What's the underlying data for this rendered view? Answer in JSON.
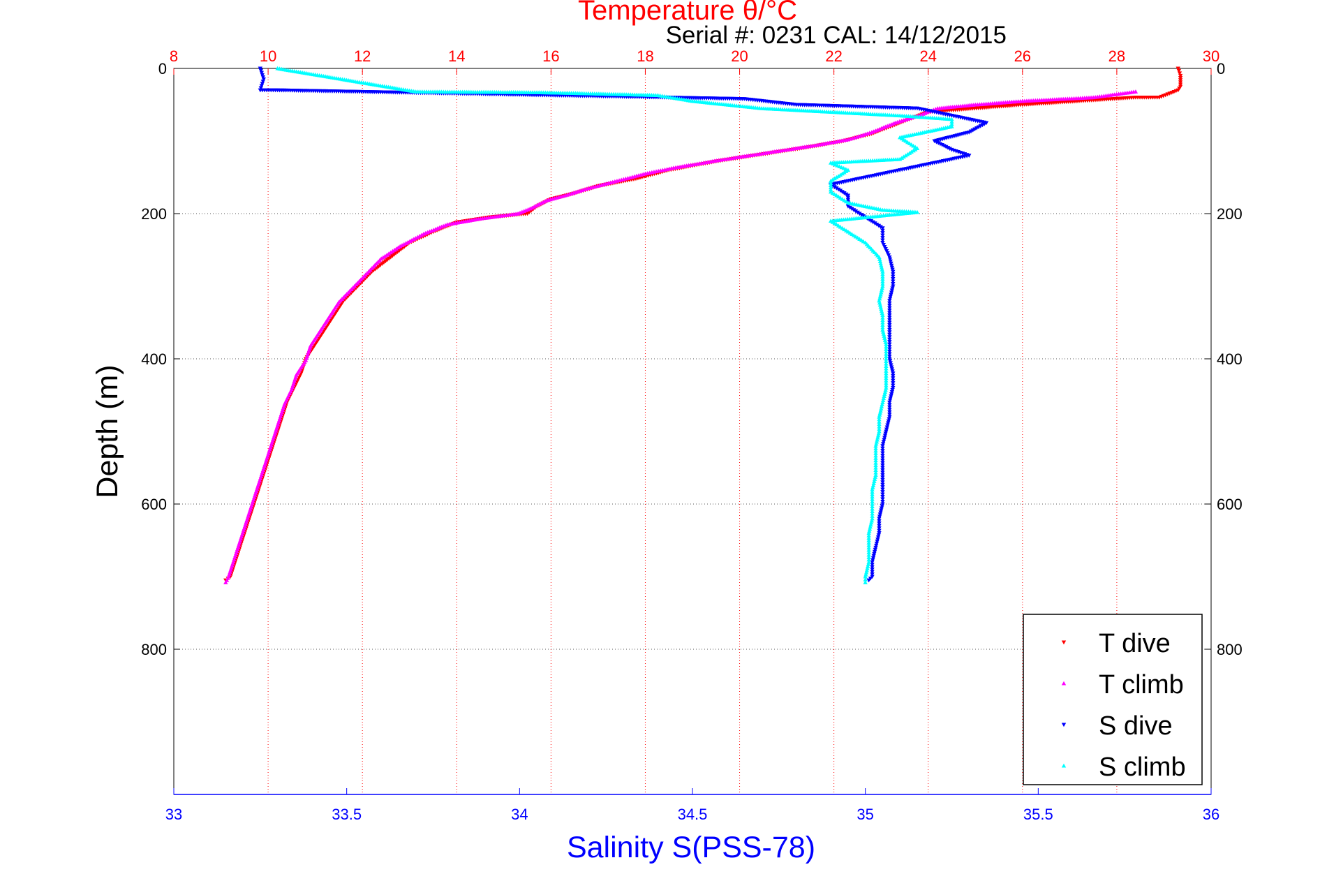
{
  "chart_data": {
    "type": "scatter",
    "title": "Temperature θ/°C",
    "subtitle": "Serial #: 0231  CAL: 14/12/2015",
    "xlabel_top": "Temperature θ/°C",
    "xlabel_bottom": "Salinity S(PSS-78)",
    "ylabel": "Depth (m)",
    "temperature_axis": {
      "range": [
        8,
        30
      ],
      "ticks": [
        8,
        10,
        12,
        14,
        16,
        18,
        20,
        22,
        24,
        26,
        28,
        30
      ],
      "color": "#ff0000"
    },
    "salinity_axis": {
      "range": [
        33,
        36
      ],
      "ticks": [
        33,
        33.5,
        34,
        34.5,
        35,
        35.5,
        36
      ],
      "tick_labels": [
        "33",
        "33.5",
        "34",
        "34.5",
        "35",
        "35.5",
        "36"
      ],
      "color": "#0000ff"
    },
    "depth_axis": {
      "range": [
        0,
        1000
      ],
      "reversed": true,
      "ticks": [
        0,
        200,
        400,
        600,
        800
      ],
      "tick_labels": [
        "0",
        "200",
        "400",
        "600",
        "800"
      ]
    },
    "grid": true,
    "legend": {
      "placement": "bottom-right",
      "entries": [
        "T dive",
        "T climb",
        "S dive",
        "S climb"
      ]
    },
    "series": [
      {
        "name": "T dive",
        "axis": "temperature",
        "marker": "triangle-down",
        "color": "#ff0000",
        "points": [
          [
            29.3,
            0
          ],
          [
            29.35,
            10
          ],
          [
            29.35,
            25
          ],
          [
            29.3,
            30
          ],
          [
            28.9,
            40
          ],
          [
            28.4,
            40
          ],
          [
            26,
            50
          ],
          [
            24,
            60
          ],
          [
            23.6,
            70
          ],
          [
            23.2,
            80
          ],
          [
            22.8,
            90
          ],
          [
            22.2,
            100
          ],
          [
            21.5,
            108
          ],
          [
            20.5,
            118
          ],
          [
            19.5,
            128
          ],
          [
            18.5,
            140
          ],
          [
            17.8,
            152
          ],
          [
            17,
            162
          ],
          [
            16.5,
            172
          ],
          [
            16,
            180
          ],
          [
            15.7,
            190
          ],
          [
            15.5,
            200
          ],
          [
            14.7,
            205
          ],
          [
            14,
            212
          ],
          [
            13.5,
            225
          ],
          [
            13,
            240
          ],
          [
            12.6,
            260
          ],
          [
            12.2,
            280
          ],
          [
            11.9,
            300
          ],
          [
            11.6,
            320
          ],
          [
            11.4,
            340
          ],
          [
            11.2,
            360
          ],
          [
            11,
            380
          ],
          [
            10.8,
            400
          ],
          [
            10.7,
            420
          ],
          [
            10.55,
            440
          ],
          [
            10.4,
            460
          ],
          [
            10.3,
            480
          ],
          [
            10.2,
            500
          ],
          [
            10.1,
            520
          ],
          [
            10,
            540
          ],
          [
            9.9,
            560
          ],
          [
            9.8,
            580
          ],
          [
            9.7,
            600
          ],
          [
            9.6,
            620
          ],
          [
            9.5,
            640
          ],
          [
            9.4,
            660
          ],
          [
            9.3,
            680
          ],
          [
            9.2,
            700
          ],
          [
            9.1,
            705
          ]
        ]
      },
      {
        "name": "T climb",
        "axis": "temperature",
        "marker": "triangle-up",
        "color": "#ff00ff",
        "points": [
          [
            28.4,
            32
          ],
          [
            27.5,
            40
          ],
          [
            26,
            45
          ],
          [
            25,
            50
          ],
          [
            24.2,
            55
          ],
          [
            23.8,
            65
          ],
          [
            23.3,
            75
          ],
          [
            22.8,
            88
          ],
          [
            22.3,
            98
          ],
          [
            21.6,
            106
          ],
          [
            20.6,
            116
          ],
          [
            19.6,
            126
          ],
          [
            18.6,
            137
          ],
          [
            18,
            145
          ],
          [
            17.4,
            155
          ],
          [
            16.8,
            165
          ],
          [
            16.3,
            175
          ],
          [
            15.9,
            182
          ],
          [
            15.6,
            192
          ],
          [
            15.3,
            200
          ],
          [
            14.5,
            207
          ],
          [
            13.8,
            215
          ],
          [
            13.3,
            228
          ],
          [
            12.8,
            245
          ],
          [
            12.4,
            262
          ],
          [
            12.1,
            282
          ],
          [
            11.8,
            302
          ],
          [
            11.5,
            322
          ],
          [
            11.3,
            342
          ],
          [
            11.1,
            362
          ],
          [
            10.9,
            382
          ],
          [
            10.8,
            402
          ],
          [
            10.6,
            422
          ],
          [
            10.5,
            442
          ],
          [
            10.35,
            462
          ],
          [
            10.25,
            482
          ],
          [
            10.15,
            502
          ],
          [
            10.05,
            522
          ],
          [
            9.95,
            542
          ],
          [
            9.85,
            562
          ],
          [
            9.75,
            582
          ],
          [
            9.65,
            602
          ],
          [
            9.55,
            622
          ],
          [
            9.45,
            642
          ],
          [
            9.35,
            662
          ],
          [
            9.25,
            682
          ],
          [
            9.15,
            702
          ],
          [
            9.1,
            708
          ]
        ]
      },
      {
        "name": "S dive",
        "axis": "salinity",
        "marker": "triangle-down",
        "color": "#0000ff",
        "points": [
          [
            33.25,
            0
          ],
          [
            33.26,
            15
          ],
          [
            33.25,
            30
          ],
          [
            33.3,
            30
          ],
          [
            34.65,
            42
          ],
          [
            34.8,
            50
          ],
          [
            35.15,
            55
          ],
          [
            35.25,
            65
          ],
          [
            35.35,
            75
          ],
          [
            35.3,
            88
          ],
          [
            35.2,
            100
          ],
          [
            35.25,
            112
          ],
          [
            35.3,
            120
          ],
          [
            35.2,
            130
          ],
          [
            35.1,
            140
          ],
          [
            35.0,
            150
          ],
          [
            34.9,
            160
          ],
          [
            34.95,
            175
          ],
          [
            34.95,
            190
          ],
          [
            35.0,
            205
          ],
          [
            35.05,
            220
          ],
          [
            35.05,
            240
          ],
          [
            35.07,
            260
          ],
          [
            35.08,
            280
          ],
          [
            35.08,
            300
          ],
          [
            35.07,
            320
          ],
          [
            35.07,
            340
          ],
          [
            35.07,
            360
          ],
          [
            35.07,
            380
          ],
          [
            35.07,
            400
          ],
          [
            35.08,
            420
          ],
          [
            35.08,
            440
          ],
          [
            35.07,
            460
          ],
          [
            35.07,
            480
          ],
          [
            35.06,
            500
          ],
          [
            35.05,
            520
          ],
          [
            35.05,
            540
          ],
          [
            35.05,
            560
          ],
          [
            35.05,
            580
          ],
          [
            35.05,
            600
          ],
          [
            35.04,
            620
          ],
          [
            35.04,
            640
          ],
          [
            35.03,
            660
          ],
          [
            35.02,
            680
          ],
          [
            35.02,
            700
          ],
          [
            35.01,
            705
          ]
        ]
      },
      {
        "name": "S climb",
        "axis": "salinity",
        "marker": "triangle-up",
        "color": "#00ffff",
        "points": [
          [
            33.3,
            0
          ],
          [
            33.7,
            32
          ],
          [
            34.05,
            33
          ],
          [
            34.15,
            34
          ],
          [
            34.4,
            37
          ],
          [
            34.5,
            45
          ],
          [
            34.7,
            55
          ],
          [
            34.9,
            60
          ],
          [
            35.1,
            65
          ],
          [
            35.25,
            70
          ],
          [
            35.25,
            80
          ],
          [
            35.1,
            95
          ],
          [
            35.15,
            110
          ],
          [
            35.1,
            125
          ],
          [
            34.9,
            130
          ],
          [
            34.95,
            140
          ],
          [
            34.9,
            155
          ],
          [
            34.9,
            170
          ],
          [
            34.95,
            185
          ],
          [
            35.05,
            195
          ],
          [
            35.15,
            198
          ],
          [
            34.9,
            210
          ],
          [
            34.95,
            225
          ],
          [
            35.0,
            240
          ],
          [
            35.04,
            260
          ],
          [
            35.05,
            280
          ],
          [
            35.05,
            300
          ],
          [
            35.04,
            320
          ],
          [
            35.05,
            340
          ],
          [
            35.05,
            360
          ],
          [
            35.06,
            380
          ],
          [
            35.06,
            400
          ],
          [
            35.06,
            420
          ],
          [
            35.06,
            440
          ],
          [
            35.05,
            460
          ],
          [
            35.04,
            480
          ],
          [
            35.04,
            500
          ],
          [
            35.03,
            520
          ],
          [
            35.03,
            540
          ],
          [
            35.03,
            560
          ],
          [
            35.02,
            580
          ],
          [
            35.02,
            600
          ],
          [
            35.02,
            620
          ],
          [
            35.01,
            640
          ],
          [
            35.01,
            660
          ],
          [
            35.01,
            680
          ],
          [
            35.0,
            700
          ],
          [
            35.0,
            708
          ]
        ]
      }
    ]
  }
}
